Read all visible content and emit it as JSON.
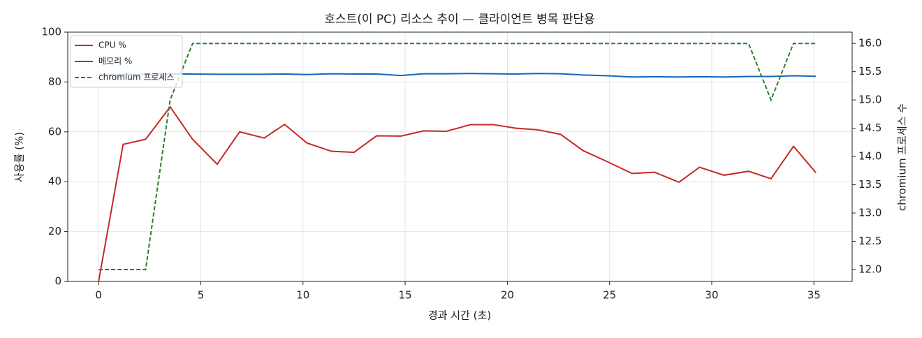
{
  "chart_data": {
    "type": "line",
    "title": "호스트(이 PC) 리소스 추이 — 클라이언트 병목 판단용",
    "x_label": "경과 시간 (초)",
    "y_label": "사용률 (%)",
    "y2_label": "chromium 프로세스 수",
    "x": [
      0.0,
      1.2,
      2.3,
      3.5,
      4.6,
      5.8,
      6.9,
      8.1,
      9.1,
      10.2,
      11.4,
      12.5,
      13.6,
      14.8,
      15.9,
      17.0,
      18.2,
      19.3,
      20.4,
      21.5,
      22.6,
      23.7,
      24.9,
      26.1,
      27.2,
      28.4,
      29.4,
      30.6,
      31.8,
      32.9,
      34.0,
      35.1
    ],
    "series": [
      {
        "name": "CPU %",
        "color": "#c62828",
        "dash": false,
        "values": [
          0,
          55,
          57,
          70,
          57,
          47,
          60,
          57.5,
          63,
          55.5,
          52.2,
          51.8,
          58.4,
          58.3,
          60.4,
          60.2,
          62.9,
          62.9,
          61.5,
          60.8,
          59,
          52.5,
          48,
          43.3,
          43.8,
          39.8,
          45.8,
          42.6,
          44.2,
          41.2,
          54.2,
          43.6
        ]
      },
      {
        "name": "메모리 %",
        "color": "#1565c0",
        "dash": false,
        "values": [
          82.8,
          83,
          83.1,
          83.2,
          83.2,
          83.1,
          83.1,
          83.1,
          83.2,
          83.0,
          83.3,
          83.2,
          83.2,
          82.6,
          83.3,
          83.3,
          83.4,
          83.3,
          83.2,
          83.4,
          83.3,
          82.8,
          82.5,
          82.0,
          82.1,
          82.0,
          82.1,
          82.0,
          82.2,
          82.2,
          82.5,
          82.3
        ]
      },
      {
        "name": "chromium 프로세스",
        "color": "#2e7d32",
        "dash": true,
        "axis": "y2",
        "values": [
          12,
          12,
          12,
          15,
          16,
          16,
          16,
          16,
          16,
          16,
          16,
          16,
          16,
          16,
          16,
          16,
          16,
          16,
          16,
          16,
          16,
          16,
          16,
          16,
          16,
          16,
          16,
          16,
          16,
          15,
          16,
          16
        ]
      }
    ],
    "xlim": [
      -1.51,
      36.87
    ],
    "xticks": [
      0,
      5,
      10,
      15,
      20,
      25,
      30,
      35
    ],
    "ylim": [
      0,
      100
    ],
    "yticks": [
      0,
      20,
      40,
      60,
      80,
      100
    ],
    "y2lim": [
      11.79,
      16.2
    ],
    "y2ticks": [
      {
        "value": 12,
        "label": "12.0"
      },
      {
        "value": 12.5,
        "label": "12.5"
      },
      {
        "value": 13,
        "label": "13.0"
      },
      {
        "value": 13.5,
        "label": "13.5"
      },
      {
        "value": 14,
        "label": "14.0"
      },
      {
        "value": 14.5,
        "label": "14.5"
      },
      {
        "value": 15,
        "label": "15.0"
      },
      {
        "value": 15.5,
        "label": "15.5"
      },
      {
        "value": 16,
        "label": "16.0"
      }
    ],
    "grid": true,
    "legend": "upper-left"
  }
}
